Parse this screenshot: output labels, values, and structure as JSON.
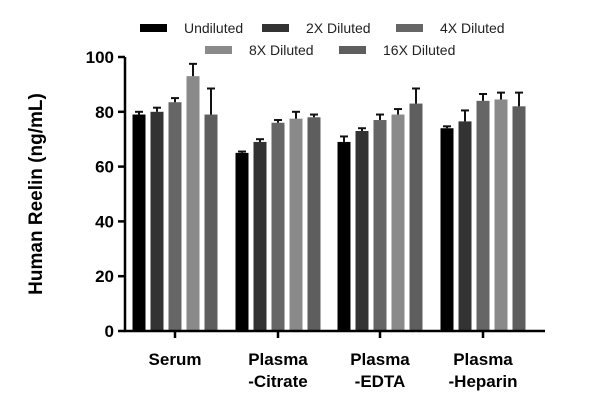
{
  "chart_data": {
    "type": "bar",
    "title": "",
    "xlabel": "",
    "ylabel": "Human Reelin (ng/mL)",
    "ylim": [
      0,
      100
    ],
    "yticks": [
      0,
      20,
      40,
      60,
      80,
      100
    ],
    "grid": false,
    "legend_position": "top",
    "categories": [
      [
        "Serum"
      ],
      [
        "Plasma",
        "-Citrate"
      ],
      [
        "Plasma",
        "-EDTA"
      ],
      [
        "Plasma",
        "-Heparin"
      ]
    ],
    "series": [
      {
        "name": "Undiluted",
        "color": "#000000",
        "values": [
          79,
          65,
          69,
          74
        ],
        "errors": [
          1,
          0.5,
          2,
          0.7
        ]
      },
      {
        "name": "2X Diluted",
        "color": "#333333",
        "values": [
          80,
          69,
          73,
          76.5
        ],
        "errors": [
          1.5,
          1,
          1,
          4
        ]
      },
      {
        "name": "4X Diluted",
        "color": "#666666",
        "values": [
          83.5,
          76,
          77,
          84
        ],
        "errors": [
          1.5,
          1,
          2,
          2.5
        ]
      },
      {
        "name": "8X Diluted",
        "color": "#8a8a8a",
        "values": [
          93,
          77.5,
          79,
          84.5
        ],
        "errors": [
          4.5,
          2.5,
          2,
          2.5
        ]
      },
      {
        "name": "16X Diluted",
        "color": "#5e5e5e",
        "values": [
          79,
          78,
          83,
          82
        ],
        "errors": [
          9.5,
          1,
          5.5,
          5
        ]
      }
    ]
  }
}
